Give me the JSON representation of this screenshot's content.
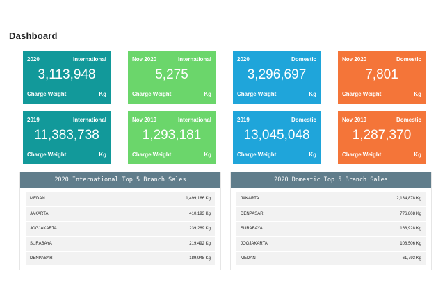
{
  "page": {
    "title": "Dashboard"
  },
  "colors": {
    "teal": "#12999a",
    "green": "#6bd66b",
    "blue": "#1fa5da",
    "orange": "#f47539",
    "panel_header": "#607d8b"
  },
  "tiles": [
    {
      "period": "2020",
      "scope": "International",
      "value": "3,113,948",
      "metric": "Charge Weight",
      "unit": "Kg",
      "color": "teal"
    },
    {
      "period": "Nov 2020",
      "scope": "International",
      "value": "5,275",
      "metric": "Charge Weight",
      "unit": "Kg",
      "color": "green"
    },
    {
      "period": "2020",
      "scope": "Domestic",
      "value": "3,296,697",
      "metric": "Charge Weight",
      "unit": "Kg",
      "color": "blue"
    },
    {
      "period": "Nov 2020",
      "scope": "Domestic",
      "value": "7,801",
      "metric": "Charge Weight",
      "unit": "Kg",
      "color": "orange"
    },
    {
      "period": "2019",
      "scope": "International",
      "value": "11,383,738",
      "metric": "Charge Weight",
      "unit": "Kg",
      "color": "teal"
    },
    {
      "period": "Nov 2019",
      "scope": "International",
      "value": "1,293,181",
      "metric": "Charge Weight",
      "unit": "Kg",
      "color": "green"
    },
    {
      "period": "2019",
      "scope": "Domestic",
      "value": "13,045,048",
      "metric": "Charge Weight",
      "unit": "Kg",
      "color": "blue"
    },
    {
      "period": "Nov 2019",
      "scope": "Domestic",
      "value": "1,287,370",
      "metric": "Charge Weight",
      "unit": "Kg",
      "color": "orange"
    }
  ],
  "panels": [
    {
      "title": "2020 International Top 5 Branch Sales",
      "rows": [
        {
          "branch": "MEDAN",
          "amount": "1,499,186 Kg"
        },
        {
          "branch": "JAKARTA",
          "amount": "410,193 Kg"
        },
        {
          "branch": "JOGJAKARTA",
          "amount": "239,269 Kg"
        },
        {
          "branch": "SURABAYA",
          "amount": "219,492 Kg"
        },
        {
          "branch": "DENPASAR",
          "amount": "189,948 Kg"
        }
      ]
    },
    {
      "title": "2020 Domestic Top 5 Branch Sales",
      "rows": [
        {
          "branch": "JAKARTA",
          "amount": "2,134,878 Kg"
        },
        {
          "branch": "DENPASAR",
          "amount": "776,808 Kg"
        },
        {
          "branch": "SURABAYA",
          "amount": "168,928 Kg"
        },
        {
          "branch": "JOGJAKARTA",
          "amount": "108,506 Kg"
        },
        {
          "branch": "MEDAN",
          "amount": "61,793 Kg"
        }
      ]
    }
  ]
}
